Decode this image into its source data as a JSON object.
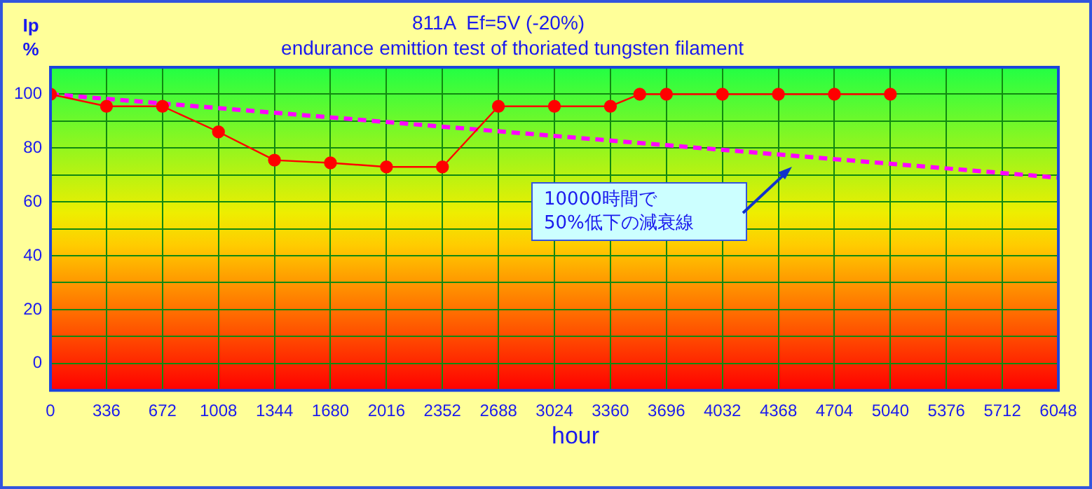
{
  "chart_data": {
    "type": "line",
    "title": "811A  Ef=5V (-20%)",
    "subtitle": "endurance emittion test of thoriated tungsten filament",
    "xlabel": "hour",
    "ylabel": "Ip %",
    "xlim": [
      0,
      6048
    ],
    "xticks": [
      0,
      336,
      672,
      1008,
      1344,
      1680,
      2016,
      2352,
      2688,
      3024,
      3360,
      3696,
      4032,
      4368,
      4704,
      5040,
      5376,
      5712,
      6048
    ],
    "ylim": [
      -10,
      110
    ],
    "yticks": [
      {
        "value": -10,
        "label": null
      },
      0,
      {
        "value": 10,
        "label": null
      },
      20,
      {
        "value": 30,
        "label": null
      },
      40,
      {
        "value": 50,
        "label": null
      },
      60,
      {
        "value": 70,
        "label": null
      },
      80,
      {
        "value": 90,
        "label": null
      },
      100,
      {
        "value": 110,
        "label": null
      }
    ],
    "grid": true,
    "legend": false,
    "series": [
      {
        "color": "#ff0000",
        "marker": "circle",
        "line_style": "solid",
        "x": [
          0,
          336,
          672,
          1008,
          1344,
          1680,
          2016,
          2352,
          2688,
          3024,
          3360,
          3536,
          3696,
          4032,
          4368,
          4704,
          5040
        ],
        "values": [
          100,
          95.5,
          95.5,
          86,
          75.5,
          74.5,
          73,
          73,
          95.5,
          95.5,
          95.5,
          100,
          100,
          100,
          100,
          100,
          100
        ]
      },
      {
        "color": "#ff00ff",
        "marker": "none",
        "line_style": "dashed",
        "x": [
          0,
          6048
        ],
        "values": [
          100,
          69
        ]
      }
    ],
    "annotations": [
      "10000時間で\n50%低下の減衰線"
    ]
  }
}
